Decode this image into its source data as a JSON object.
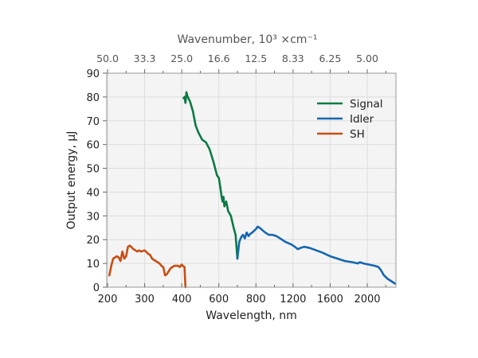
{
  "chart_data": {
    "type": "line",
    "title": "",
    "xlabel": "Wavelength, nm",
    "ylabel": "Output energy, μJ",
    "top_xlabel": "Wavenumber, 10³ ×cm⁻¹",
    "x_ticks": [
      200,
      300,
      400,
      600,
      800,
      1200,
      1600,
      2000
    ],
    "x_tick_labels": [
      "200",
      "300",
      "400",
      "600",
      "800",
      "1200",
      "1600",
      "2000"
    ],
    "top_x_tick_labels": [
      "50.0",
      "33.3",
      "25.0",
      "16.6",
      "12.5",
      "8.33",
      "6.25",
      "5.00"
    ],
    "x_axis_scale": "piecewise (equally spaced ticks)",
    "xlim": [
      200,
      2330
    ],
    "y_ticks": [
      0,
      10,
      20,
      30,
      40,
      50,
      60,
      70,
      80,
      90
    ],
    "y_tick_labels": [
      "0",
      "10",
      "20",
      "30",
      "40",
      "50",
      "60",
      "70",
      "80",
      "90"
    ],
    "ylim": [
      0,
      90
    ],
    "grid": true,
    "legend_position": "top-right",
    "series": [
      {
        "name": "Signal",
        "color": "#0b7a44",
        "x": [
          410,
          415,
          420,
          425,
          430,
          445,
          460,
          475,
          490,
          510,
          530,
          550,
          570,
          590,
          600,
          610,
          615,
          620,
          625,
          630,
          640,
          650,
          665,
          680,
          690,
          700
        ],
        "y": [
          79.5,
          80,
          77.5,
          82,
          80.5,
          78,
          74,
          68,
          65,
          62,
          61,
          58,
          53,
          47,
          46,
          41,
          38,
          36,
          38,
          34,
          36,
          32,
          30,
          25,
          22,
          12
        ]
      },
      {
        "name": "Idler",
        "color": "#1566b0",
        "x": [
          700,
          710,
          720,
          730,
          740,
          750,
          760,
          770,
          780,
          800,
          820,
          840,
          870,
          900,
          940,
          980,
          1020,
          1060,
          1120,
          1180,
          1220,
          1250,
          1280,
          1320,
          1380,
          1450,
          1520,
          1600,
          1680,
          1760,
          1840,
          1900,
          1920,
          1960,
          2020,
          2080,
          2120,
          2150,
          2180,
          2220,
          2260,
          2300
        ],
        "y": [
          12,
          19,
          21,
          22,
          20.5,
          23,
          21.5,
          22.5,
          23,
          24.5,
          25.5,
          25,
          24,
          23,
          22,
          22,
          21.5,
          20.5,
          19,
          18,
          17,
          16,
          16.5,
          17,
          16.5,
          15.5,
          14.5,
          13,
          12,
          11,
          10.5,
          10,
          10.5,
          10,
          9.5,
          9,
          8.5,
          7,
          5,
          3.5,
          2.5,
          1.5
        ]
      },
      {
        "name": "SH",
        "color": "#c84e12",
        "x": [
          205,
          210,
          215,
          225,
          230,
          235,
          240,
          245,
          250,
          255,
          260,
          270,
          280,
          285,
          290,
          300,
          310,
          315,
          320,
          330,
          340,
          345,
          350,
          355,
          360,
          370,
          380,
          390,
          395,
          400,
          405,
          415,
          420
        ],
        "y": [
          5,
          9,
          12,
          13,
          12.5,
          11,
          15,
          12,
          13,
          17,
          17.5,
          16,
          15,
          15.5,
          15,
          15.5,
          14,
          13.5,
          12,
          11,
          10,
          9,
          8.5,
          5,
          5.5,
          8,
          9,
          9,
          8.5,
          9.5,
          9,
          8.5,
          0
        ]
      }
    ]
  }
}
